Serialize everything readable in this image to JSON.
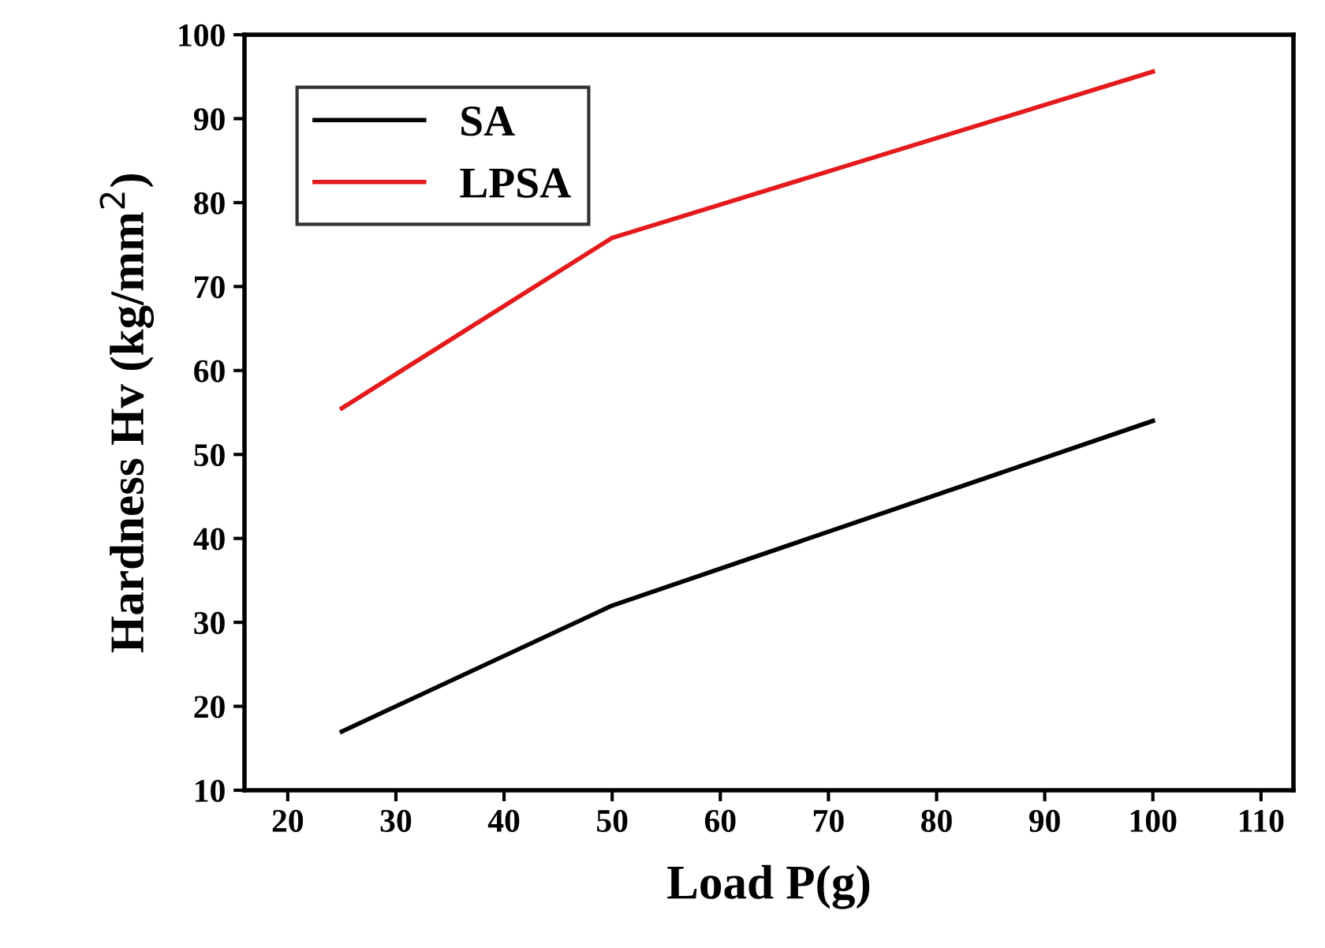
{
  "chart_data": {
    "type": "line",
    "xlabel": "Load P(g)",
    "ylabel": "Hardness Hv (kg/mm$^{2}$)",
    "x": [
      25,
      50,
      100
    ],
    "series": [
      {
        "name": "SA",
        "color": "#000000",
        "values": [
          17.0,
          32.0,
          54.0
        ]
      },
      {
        "name": "LPSA",
        "color": "#e41a1c",
        "values": [
          55.5,
          75.8,
          95.6
        ]
      }
    ],
    "xlim": [
      16,
      113
    ],
    "xticks": [
      20,
      30,
      40,
      50,
      60,
      70,
      80,
      90,
      100,
      110
    ],
    "ylim": [
      10,
      100
    ],
    "yticks": [
      10,
      20,
      30,
      40,
      50,
      60,
      70,
      80,
      90,
      100
    ],
    "grid": false,
    "legend": "top left",
    "marker": "none",
    "line_style": "solid"
  }
}
